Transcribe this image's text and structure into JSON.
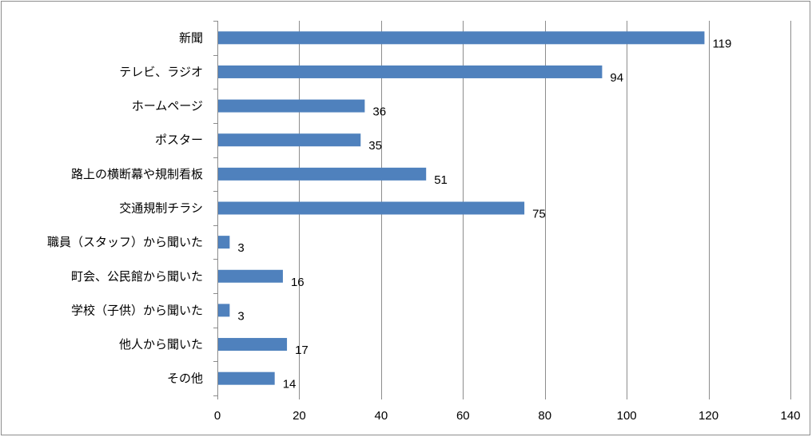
{
  "chart_data": {
    "type": "bar",
    "orientation": "horizontal",
    "title": "",
    "xlabel": "",
    "ylabel": "",
    "categories": [
      "新聞",
      "テレビ、ラジオ",
      "ホームページ",
      "ポスター",
      "路上の横断幕や規制看板",
      "交通規制チラシ",
      "職員（スタッフ）から聞いた",
      "町会、公民館から聞いた",
      "学校（子供）から聞いた",
      "他人から聞いた",
      "その他"
    ],
    "values": [
      119,
      94,
      36,
      35,
      51,
      75,
      3,
      16,
      3,
      17,
      14
    ],
    "xlim": [
      0,
      140
    ],
    "xticks": [
      0,
      20,
      40,
      60,
      80,
      100,
      120,
      140
    ],
    "grid": true,
    "legend": "none",
    "data_labels": true,
    "bar_color": "#4f81bd"
  }
}
